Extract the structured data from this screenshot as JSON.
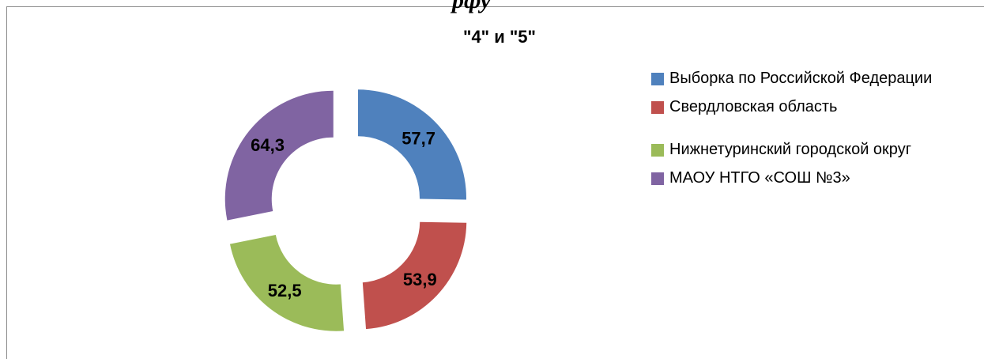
{
  "header_fragment": "рфу",
  "chart_data": {
    "type": "pie",
    "style": "exploded-doughnut",
    "title": "\"4\" и \"5\"",
    "categories": [
      "Выборка по Российской Федерации",
      "Свердловская область",
      "Нижнетуринский городской округ",
      "МАОУ НТГО «СОШ №3»"
    ],
    "values": [
      57.7,
      53.9,
      52.5,
      64.3
    ],
    "labels": [
      "57,7",
      "53,9",
      "52,5",
      "64,3"
    ],
    "colors": [
      "#4f81bd",
      "#c0504d",
      "#9bbb59",
      "#8064a2"
    ],
    "legend_position": "right"
  }
}
